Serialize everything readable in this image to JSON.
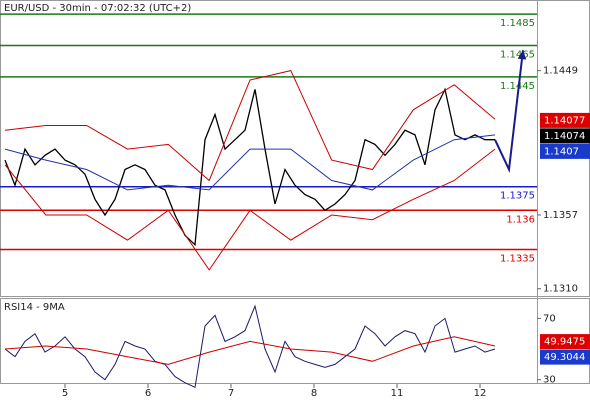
{
  "chart_data": [
    {
      "type": "line",
      "title": "EUR/USD - 30min - 07:02:32 (UTC+2)",
      "x_labels": [
        "5",
        "6",
        "7",
        "8",
        "11",
        "12"
      ],
      "ylim": [
        1.1306,
        1.1494
      ],
      "yticks": [
        1.1449,
        1.1357,
        {
          "value": 1.131,
          "label": "1.1310"
        }
      ],
      "series": [
        {
          "color": "#000000",
          "values": [
            1.1392,
            1.1376,
            1.1399,
            1.1389,
            1.1395,
            1.1399,
            1.1392,
            1.1389,
            1.1383,
            1.1367,
            1.1357,
            1.1367,
            1.1386,
            1.1389,
            1.1386,
            1.1376,
            1.1373,
            1.1357,
            1.1344,
            1.1338,
            1.1405,
            1.1421,
            1.1399,
            1.1405,
            1.1411,
            1.1437,
            1.1399,
            1.1364,
            1.1386,
            1.1376,
            1.137,
            1.1367,
            1.136,
            1.1364,
            1.137,
            1.1379,
            1.1405,
            1.1402,
            1.1395,
            1.1402,
            1.1411,
            1.1408,
            1.1389,
            1.1424,
            1.1437,
            1.1408,
            1.1405,
            1.1408,
            1.1405,
            1.1405
          ]
        },
        {
          "color": "#cc0000",
          "values": [
            1.1411,
            1.1414,
            1.1414,
            1.1399,
            1.1402,
            1.1379,
            1.1443,
            1.1449,
            1.1392,
            1.1386,
            1.1424,
            1.144,
            1.1418
          ]
        },
        {
          "color": "#cc0000",
          "values": [
            1.1389,
            1.1357,
            1.1357,
            1.1341,
            1.136,
            1.1322,
            1.136,
            1.1341,
            1.1357,
            1.1354,
            1.1367,
            1.1379,
            1.1399
          ]
        },
        {
          "color": "#2233aa",
          "values": [
            1.1399,
            1.1392,
            1.1386,
            1.1373,
            1.1376,
            1.1373,
            1.1399,
            1.1399,
            1.1379,
            1.1373,
            1.1392,
            1.1405,
            1.1408
          ]
        }
      ],
      "projection": {
        "color": "#1a1a8c",
        "values": [
          1.1405,
          1.1386,
          1.1462
        ]
      },
      "levels": [
        {
          "value": 1.1485,
          "color": "#1a7a1a"
        },
        {
          "value": 1.1465,
          "color": "#1a7a1a"
        },
        {
          "value": 1.1445,
          "color": "#1a7a1a"
        },
        {
          "value": 1.1375,
          "color": "#1a1acc"
        },
        {
          "value": 1.136,
          "color": "#dd0000"
        },
        {
          "value": 1.1335,
          "color": "#dd0000"
        }
      ],
      "tags": [
        {
          "value": 1.14077,
          "color": "#dd0000"
        },
        {
          "value": 1.14074,
          "color": "#000000"
        },
        {
          "value": 1.1407,
          "color": "#1a3acc"
        }
      ]
    },
    {
      "type": "line",
      "title": "RSI14 - 9MA",
      "ylim": [
        20,
        82
      ],
      "yticks": [
        70,
        30
      ],
      "series": [
        {
          "color": "#1a1a6c",
          "values": [
            50,
            45,
            55,
            60,
            48,
            52,
            58,
            50,
            45,
            35,
            30,
            40,
            55,
            52,
            50,
            42,
            40,
            32,
            28,
            25,
            65,
            72,
            55,
            58,
            62,
            78,
            50,
            35,
            55,
            45,
            42,
            40,
            38,
            40,
            45,
            50,
            65,
            60,
            52,
            58,
            62,
            60,
            48,
            65,
            70,
            48,
            50,
            52,
            48,
            50
          ]
        },
        {
          "color": "#cc0000",
          "values": [
            50,
            52,
            50,
            45,
            40,
            48,
            55,
            50,
            48,
            42,
            52,
            58,
            52
          ]
        }
      ],
      "tags": [
        {
          "value": 49.9475,
          "color": "#dd0000"
        },
        {
          "value": 49.3044,
          "color": "#1a3acc"
        }
      ]
    }
  ]
}
